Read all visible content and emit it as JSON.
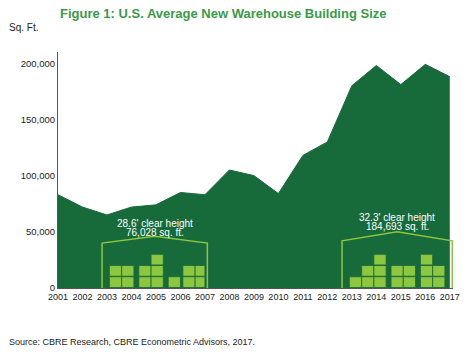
{
  "chart_data": {
    "type": "area",
    "title": "Figure 1: U.S. Average New Warehouse Building Size",
    "y_label": "Sq. Ft.",
    "categories": [
      "2001",
      "2002",
      "2003",
      "2004",
      "2005",
      "2006",
      "2007",
      "2008",
      "2009",
      "2010",
      "2011",
      "2012",
      "2013",
      "2014",
      "2015",
      "2016",
      "2017"
    ],
    "values": [
      83000,
      72000,
      65000,
      72000,
      74000,
      85000,
      83000,
      105000,
      100000,
      84000,
      118000,
      130000,
      180000,
      198000,
      181000,
      199000,
      188000
    ],
    "color": "#176b3b",
    "ylim": [
      0,
      210000
    ],
    "yticks": [
      0,
      {
        "value": 50000,
        "label": "50,000"
      },
      {
        "value": 100000,
        "label": "100,000"
      },
      {
        "value": 150000,
        "label": "150,000"
      },
      {
        "value": 200000,
        "label": "200,000"
      }
    ],
    "grid": false,
    "annotations": [
      "28.6' clear height",
      "76,028 sq. ft.",
      "32.3' clear height",
      "184,693 sq. ft."
    ],
    "source": "Source: CBRE Research, CBRE Econometric Advisors, 2017."
  }
}
